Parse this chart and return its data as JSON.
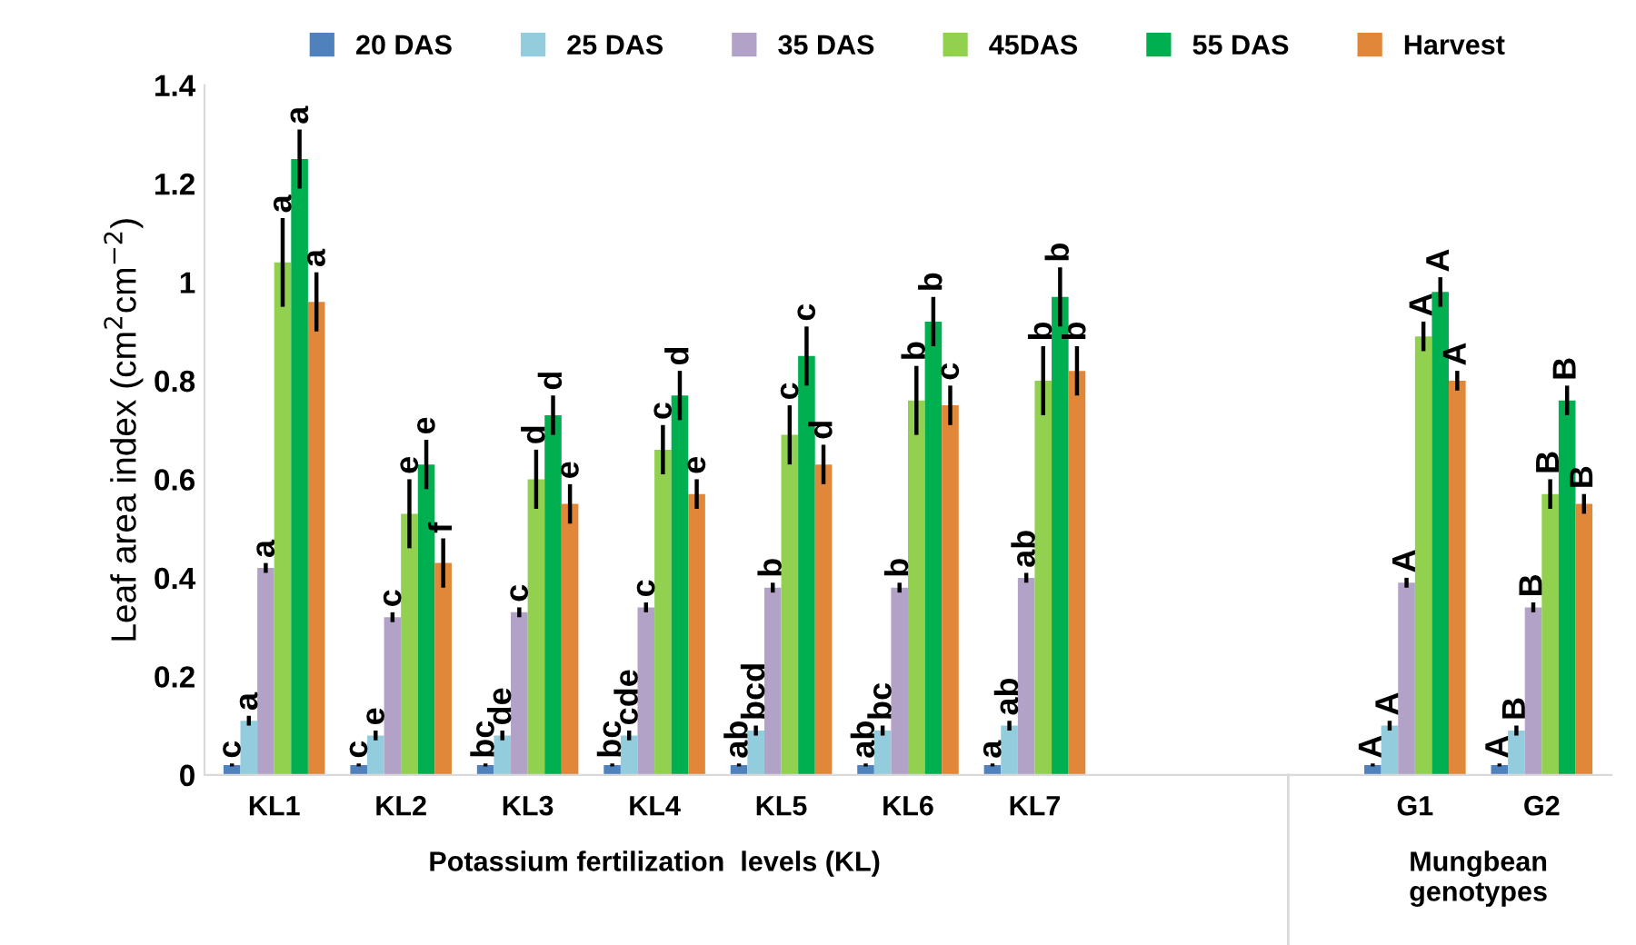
{
  "chart_data": {
    "type": "bar",
    "ylabel": "Leaf area index (cm$^{2}$cm$^{−2}$)",
    "categories": [
      "KL1",
      "KL2",
      "KL3",
      "KL4",
      "KL5",
      "KL6",
      "KL7",
      null,
      null,
      "G1",
      "G2"
    ],
    "series": [
      {
        "name": "20 DAS",
        "color": "#4f81bd",
        "values": [
          0.02,
          0.02,
          0.02,
          0.02,
          0.02,
          0.02,
          0.02,
          null,
          null,
          0.02,
          0.02
        ],
        "errors": [
          0.003,
          0.003,
          0.003,
          0.003,
          0.003,
          0.003,
          0.003,
          null,
          null,
          0.003,
          0.003
        ],
        "value_labels": [
          "c",
          "c",
          "bc",
          "bc",
          "ab",
          "ab",
          "a",
          null,
          null,
          "A",
          "A"
        ]
      },
      {
        "name": "25 DAS",
        "color": "#93cddd",
        "values": [
          0.11,
          0.08,
          0.08,
          0.08,
          0.09,
          0.09,
          0.1,
          null,
          null,
          0.1,
          0.09
        ],
        "errors": [
          0.01,
          0.01,
          0.01,
          0.01,
          0.01,
          0.01,
          0.01,
          null,
          null,
          0.01,
          0.01
        ],
        "value_labels": [
          "a",
          "e",
          "de",
          "cde",
          "bcd",
          "bc",
          "ab",
          null,
          null,
          "A",
          "B"
        ]
      },
      {
        "name": "35 DAS",
        "color": "#b3a2c7",
        "values": [
          0.42,
          0.32,
          0.33,
          0.34,
          0.38,
          0.38,
          0.4,
          null,
          null,
          0.39,
          0.34
        ],
        "errors": [
          0.01,
          0.01,
          0.01,
          0.01,
          0.01,
          0.01,
          0.01,
          null,
          null,
          0.01,
          0.01
        ],
        "value_labels": [
          "a",
          "c",
          "c",
          "c",
          "b",
          "b",
          "ab",
          null,
          null,
          "A",
          "B"
        ]
      },
      {
        "name": "45DAS",
        "color": "#92d050",
        "values": [
          1.04,
          0.53,
          0.6,
          0.66,
          0.69,
          0.76,
          0.8,
          null,
          null,
          0.89,
          0.57
        ],
        "errors": [
          0.09,
          0.07,
          0.06,
          0.05,
          0.06,
          0.07,
          0.07,
          null,
          null,
          0.03,
          0.03
        ],
        "value_labels": [
          "a",
          "e",
          "d",
          "c",
          "c",
          "b",
          "b",
          null,
          null,
          "A",
          "B"
        ]
      },
      {
        "name": "55 DAS",
        "color": "#00b050",
        "values": [
          1.25,
          0.63,
          0.73,
          0.77,
          0.85,
          0.92,
          0.97,
          null,
          null,
          0.98,
          0.76
        ],
        "errors": [
          0.06,
          0.05,
          0.04,
          0.05,
          0.06,
          0.05,
          0.06,
          null,
          null,
          0.03,
          0.03
        ],
        "value_labels": [
          "a",
          "e",
          "d",
          "d",
          "c",
          "b",
          "b",
          null,
          null,
          "A",
          "B"
        ]
      },
      {
        "name": "Harvest",
        "color": "#e0873a",
        "values": [
          0.96,
          0.43,
          0.55,
          0.57,
          0.63,
          0.75,
          0.82,
          null,
          null,
          0.8,
          0.55
        ],
        "errors": [
          0.06,
          0.05,
          0.04,
          0.03,
          0.04,
          0.04,
          0.05,
          null,
          null,
          0.02,
          0.02
        ],
        "value_labels": [
          "a",
          "f",
          "e",
          "e",
          "d",
          "c",
          "b",
          null,
          null,
          "A",
          "B"
        ]
      }
    ],
    "ylim": [
      0,
      1.4
    ],
    "yticks": [
      0,
      0.2,
      0.4,
      0.6,
      0.8,
      1,
      1.2,
      1.4
    ],
    "grid": false,
    "legend": "top",
    "annotations": [
      "Potassium fertilization  levels (KL)",
      "Mungbean\ngenotypes"
    ]
  }
}
